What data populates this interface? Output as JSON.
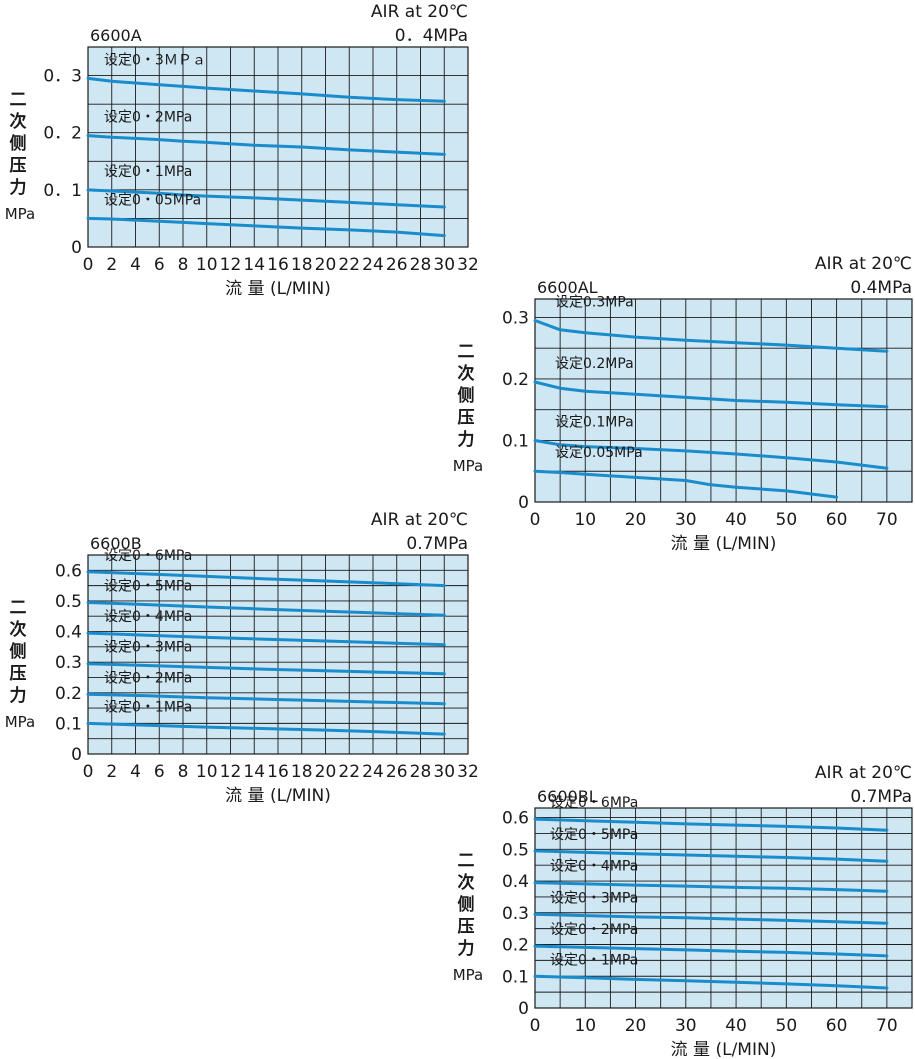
{
  "colors": {
    "curve": "#1a8ccc",
    "plot_bg": "#cfe6f3",
    "grid": "#1a1a1a"
  },
  "chart_data": [
    {
      "type": "line",
      "model": "6600A",
      "condition": "AIR at 20℃",
      "supply_pressure": "0．4MPa",
      "ylabel_lines": [
        "二",
        "次",
        "侧",
        "压",
        "力",
        "MPa"
      ],
      "xlabel": "流  量 (L/MIN)",
      "xlim": [
        0,
        32
      ],
      "ylim": [
        0,
        0.35
      ],
      "xticks": [
        0,
        2,
        4,
        6,
        8,
        10,
        12,
        14,
        16,
        18,
        20,
        22,
        24,
        26,
        28,
        30,
        32
      ],
      "yticks": [
        0,
        0.1,
        0.2,
        0.3
      ],
      "ytick_labels": [
        "0",
        "0．1",
        "0．2",
        "0．3"
      ],
      "series": [
        {
          "name": "设定0・3ＭＰａ",
          "x": [
            0,
            2,
            4,
            6,
            8,
            10,
            14,
            18,
            22,
            26,
            30
          ],
          "y": [
            0.295,
            0.29,
            0.287,
            0.284,
            0.281,
            0.278,
            0.273,
            0.268,
            0.262,
            0.258,
            0.255
          ]
        },
        {
          "name": "设定0・2MPa",
          "x": [
            0,
            2,
            4,
            6,
            8,
            10,
            14,
            18,
            22,
            26,
            30
          ],
          "y": [
            0.195,
            0.192,
            0.19,
            0.188,
            0.185,
            0.183,
            0.178,
            0.175,
            0.17,
            0.166,
            0.162
          ]
        },
        {
          "name": "设定0・1MPa",
          "x": [
            0,
            2,
            4,
            6,
            8,
            10,
            14,
            18,
            22,
            26,
            30
          ],
          "y": [
            0.1,
            0.098,
            0.096,
            0.094,
            0.091,
            0.089,
            0.086,
            0.082,
            0.078,
            0.074,
            0.07
          ]
        },
        {
          "name": "设定0・05MPa",
          "x": [
            0,
            2,
            4,
            6,
            8,
            10,
            14,
            18,
            22,
            26,
            30
          ],
          "y": [
            0.05,
            0.049,
            0.047,
            0.045,
            0.043,
            0.041,
            0.037,
            0.033,
            0.03,
            0.026,
            0.02
          ]
        }
      ]
    },
    {
      "type": "line",
      "model": "6600AL",
      "condition": "AIR at 20℃",
      "supply_pressure": "0.4MPa",
      "ylabel_lines": [
        "二",
        "次",
        "侧",
        "压",
        "力",
        "MPa"
      ],
      "xlabel": "流  量  (L/MIN)",
      "xlim": [
        0,
        75
      ],
      "ylim": [
        0,
        0.33
      ],
      "xticks": [
        0,
        10,
        20,
        30,
        40,
        50,
        60,
        70
      ],
      "yticks": [
        0,
        0.1,
        0.2,
        0.3
      ],
      "ytick_labels": [
        "0",
        "0.1",
        "0.2",
        "0.3"
      ],
      "series": [
        {
          "name": "设定0.3MPa",
          "x": [
            0,
            5,
            10,
            20,
            30,
            40,
            50,
            60,
            70
          ],
          "y": [
            0.295,
            0.28,
            0.275,
            0.268,
            0.263,
            0.259,
            0.255,
            0.25,
            0.245
          ]
        },
        {
          "name": "设定0.2MPa",
          "x": [
            0,
            5,
            10,
            20,
            30,
            40,
            50,
            60,
            70
          ],
          "y": [
            0.195,
            0.185,
            0.18,
            0.175,
            0.17,
            0.165,
            0.162,
            0.158,
            0.155
          ]
        },
        {
          "name": "设定0.1MPa",
          "x": [
            0,
            5,
            10,
            20,
            30,
            40,
            50,
            60,
            70
          ],
          "y": [
            0.1,
            0.093,
            0.09,
            0.087,
            0.083,
            0.078,
            0.072,
            0.065,
            0.055
          ]
        },
        {
          "name": "设定0.05MPa",
          "x": [
            0,
            5,
            10,
            20,
            30,
            35,
            40,
            50,
            60
          ],
          "y": [
            0.05,
            0.048,
            0.045,
            0.04,
            0.035,
            0.028,
            0.024,
            0.018,
            0.008
          ]
        }
      ]
    },
    {
      "type": "line",
      "model": "6600B",
      "condition": "AIR at 20℃",
      "supply_pressure": "0.7MPa",
      "ylabel_lines": [
        "二",
        "次",
        "侧",
        "压",
        "力",
        "MPa"
      ],
      "xlabel": "流  量 (L/MIN)",
      "xlim": [
        0,
        32
      ],
      "ylim": [
        0,
        0.65
      ],
      "xticks": [
        0,
        2,
        4,
        6,
        8,
        10,
        12,
        14,
        16,
        18,
        20,
        22,
        24,
        26,
        28,
        30,
        32
      ],
      "yticks": [
        0,
        0.1,
        0.2,
        0.3,
        0.4,
        0.5,
        0.6
      ],
      "ytick_labels": [
        "0",
        "0.1",
        "0.2",
        "0.3",
        "0.4",
        "0.5",
        "0.6"
      ],
      "series": [
        {
          "name": "设定0・6MPa",
          "x": [
            0,
            5,
            10,
            15,
            20,
            25,
            30
          ],
          "y": [
            0.595,
            0.588,
            0.58,
            0.572,
            0.565,
            0.558,
            0.55
          ]
        },
        {
          "name": "设定0・5MPa",
          "x": [
            0,
            5,
            10,
            15,
            20,
            25,
            30
          ],
          "y": [
            0.495,
            0.488,
            0.48,
            0.473,
            0.466,
            0.46,
            0.453
          ]
        },
        {
          "name": "设定0・4MPa",
          "x": [
            0,
            5,
            10,
            15,
            20,
            25,
            30
          ],
          "y": [
            0.395,
            0.388,
            0.381,
            0.375,
            0.369,
            0.363,
            0.357
          ]
        },
        {
          "name": "设定0・3MPa",
          "x": [
            0,
            5,
            10,
            15,
            20,
            25,
            30
          ],
          "y": [
            0.295,
            0.289,
            0.283,
            0.277,
            0.272,
            0.267,
            0.262
          ]
        },
        {
          "name": "设定0・2MPa",
          "x": [
            0,
            5,
            10,
            15,
            20,
            25,
            30
          ],
          "y": [
            0.195,
            0.19,
            0.184,
            0.179,
            0.174,
            0.169,
            0.164
          ]
        },
        {
          "name": "设定0・1MPa",
          "x": [
            0,
            5,
            10,
            15,
            20,
            25,
            30
          ],
          "y": [
            0.1,
            0.094,
            0.088,
            0.083,
            0.078,
            0.072,
            0.065
          ]
        }
      ]
    },
    {
      "type": "line",
      "model": "6600BL",
      "condition": "AIR at 20℃",
      "supply_pressure": "0.7MPa",
      "ylabel_lines": [
        "二",
        "次",
        "侧",
        "压",
        "力",
        "MPa"
      ],
      "xlabel": "流  量  (L/MIN)",
      "xlim": [
        0,
        75
      ],
      "ylim": [
        0,
        0.63
      ],
      "xticks": [
        0,
        10,
        20,
        30,
        40,
        50,
        60,
        70
      ],
      "yticks": [
        0,
        0.1,
        0.2,
        0.3,
        0.4,
        0.5,
        0.6
      ],
      "ytick_labels": [
        "0",
        "0.1",
        "0.2",
        "0.3",
        "0.4",
        "0.5",
        "0.6"
      ],
      "series": [
        {
          "name": "设定0・6MPa",
          "x": [
            0,
            10,
            20,
            30,
            40,
            50,
            60,
            70
          ],
          "y": [
            0.595,
            0.59,
            0.585,
            0.58,
            0.576,
            0.572,
            0.567,
            0.56
          ]
        },
        {
          "name": "设定0・5MPa",
          "x": [
            0,
            10,
            20,
            30,
            40,
            50,
            60,
            70
          ],
          "y": [
            0.495,
            0.49,
            0.486,
            0.482,
            0.478,
            0.474,
            0.469,
            0.462
          ]
        },
        {
          "name": "设定0・4MPa",
          "x": [
            0,
            10,
            20,
            30,
            40,
            50,
            60,
            70
          ],
          "y": [
            0.395,
            0.391,
            0.387,
            0.384,
            0.38,
            0.377,
            0.373,
            0.368
          ]
        },
        {
          "name": "设定0・3MPa",
          "x": [
            0,
            10,
            20,
            30,
            40,
            50,
            60,
            70
          ],
          "y": [
            0.295,
            0.291,
            0.287,
            0.284,
            0.28,
            0.276,
            0.272,
            0.267
          ]
        },
        {
          "name": "设定0・2MPa",
          "x": [
            0,
            10,
            20,
            30,
            40,
            50,
            60,
            70
          ],
          "y": [
            0.195,
            0.191,
            0.187,
            0.183,
            0.179,
            0.175,
            0.17,
            0.164
          ]
        },
        {
          "name": "设定0・1MPa",
          "x": [
            0,
            10,
            20,
            30,
            40,
            50,
            60,
            70
          ],
          "y": [
            0.1,
            0.095,
            0.09,
            0.086,
            0.081,
            0.076,
            0.07,
            0.063
          ]
        }
      ]
    }
  ]
}
